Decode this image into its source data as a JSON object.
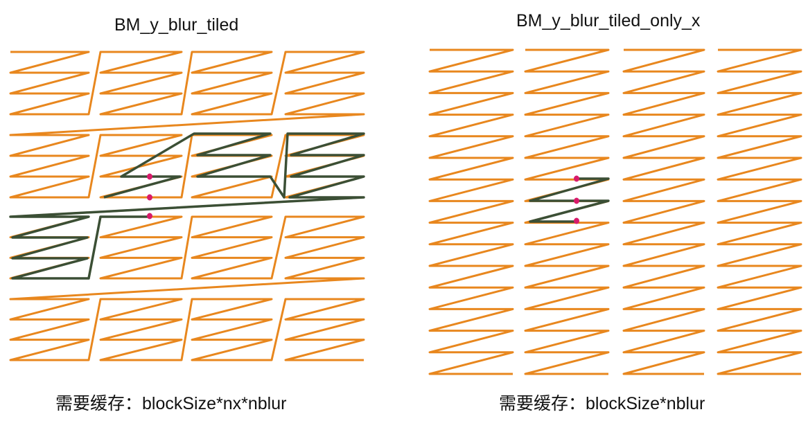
{
  "left_panel": {
    "title": "BM_y_blur_tiled",
    "caption": "需要缓存：blockSize*nx*nblur"
  },
  "right_panel": {
    "title": "BM_y_blur_tiled_only_x",
    "caption": "需要缓存：blockSize*nblur"
  },
  "colors": {
    "scan_path": "#e8871e",
    "highlight_path": "#3b4f35",
    "marker": "#d81b6a"
  }
}
